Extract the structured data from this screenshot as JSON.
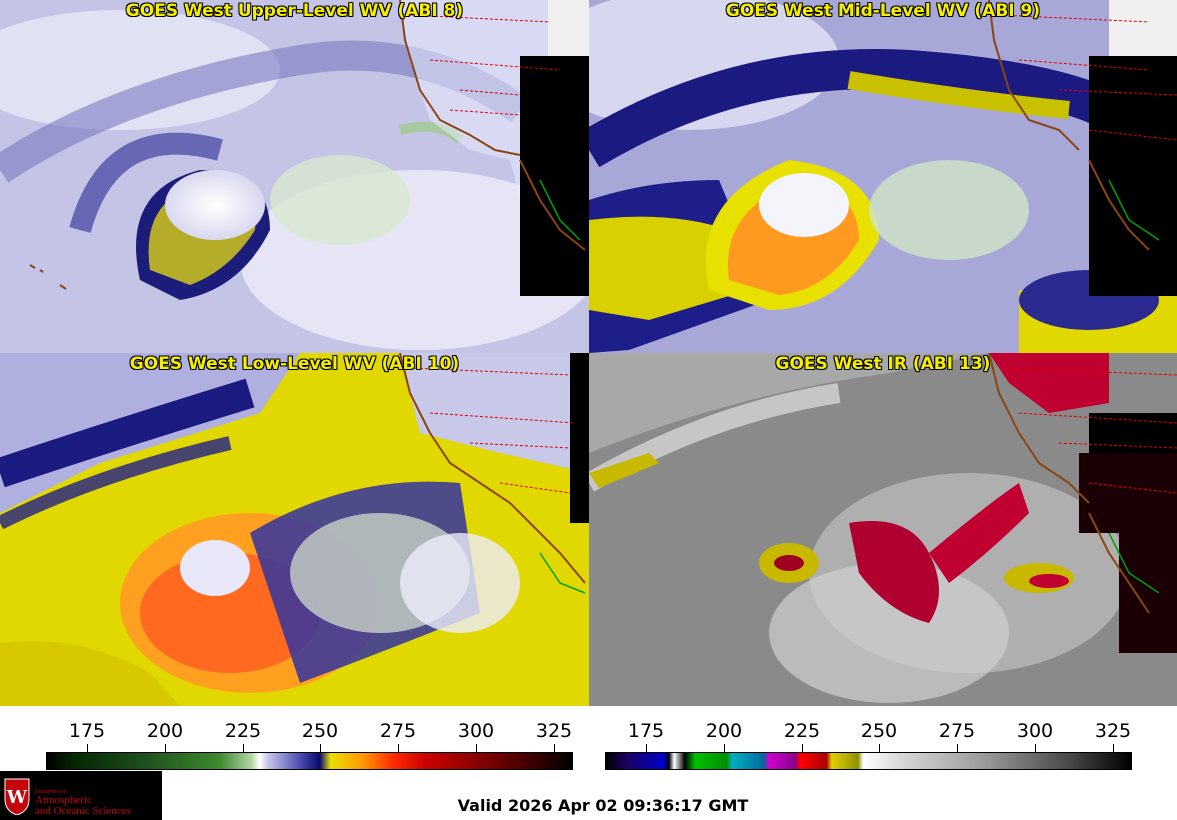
{
  "panels": [
    {
      "title": "GOES West Upper-Level WV (ABI 8)"
    },
    {
      "title": "GOES West Mid-Level WV (ABI 9)"
    },
    {
      "title": "GOES West Low-Level WV (ABI 10)"
    },
    {
      "title": "GOES West IR (ABI 13)"
    }
  ],
  "colorbars": [
    {
      "ticks": [
        "175",
        "200",
        "225",
        "250",
        "275",
        "300",
        "325"
      ]
    },
    {
      "ticks": [
        "175",
        "200",
        "225",
        "250",
        "275",
        "300",
        "325"
      ]
    }
  ],
  "logo": {
    "dept": "Department of",
    "line1": "Atmospheric",
    "line2": "and Oceanic Sciences"
  },
  "footer": {
    "valid": "Valid 2026 Apr 02 09:36:17 GMT"
  },
  "colors": {
    "title_yellow": "#f5ee00",
    "border_red": "#e00000",
    "coast_brown": "#8b4513",
    "logo_red": "#c5050c"
  }
}
